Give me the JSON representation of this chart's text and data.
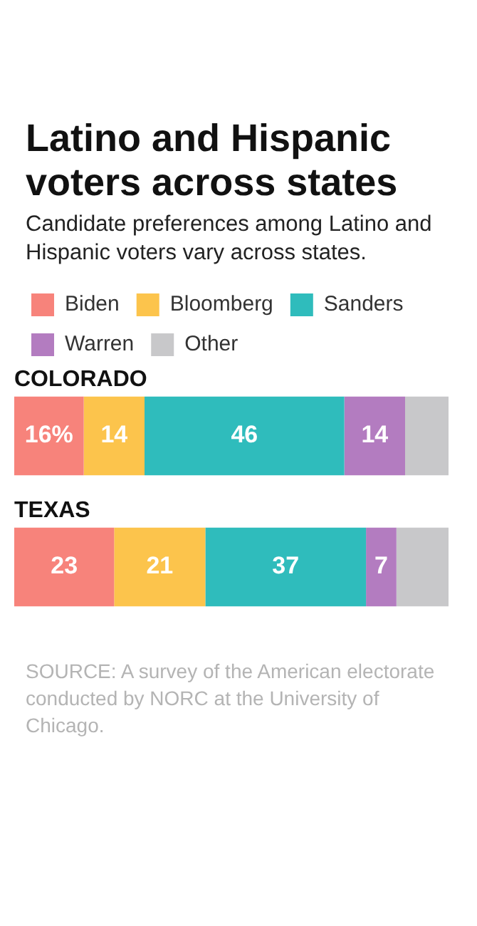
{
  "chart_data": {
    "type": "bar",
    "orientation": "horizontal",
    "stacked": true,
    "title": "Latino and Hispanic voters across states",
    "subtitle": "Candidate preferences among Latino and Hispanic voters vary across states.",
    "categories": [
      "COLORADO",
      "TEXAS"
    ],
    "series": [
      {
        "name": "Biden",
        "color": "#f7837b",
        "values": [
          16,
          23
        ],
        "value_labels": [
          "16%",
          "23"
        ]
      },
      {
        "name": "Bloomberg",
        "color": "#fcc44c",
        "values": [
          14,
          21
        ],
        "value_labels": [
          "14",
          "21"
        ]
      },
      {
        "name": "Sanders",
        "color": "#2fbcbc",
        "values": [
          46,
          37
        ],
        "value_labels": [
          "46",
          "37"
        ]
      },
      {
        "name": "Warren",
        "color": "#b37cc0",
        "values": [
          14,
          7
        ],
        "value_labels": [
          "14",
          "7"
        ]
      },
      {
        "name": "Other",
        "color": "#c8c8ca",
        "values": [
          10,
          12
        ],
        "value_labels": [
          null,
          null
        ]
      }
    ],
    "xlim": [
      0,
      100
    ],
    "legend": "top left",
    "annotations": [
      "SOURCE: A survey of the American electorate conducted by NORC at the University of Chicago."
    ]
  }
}
